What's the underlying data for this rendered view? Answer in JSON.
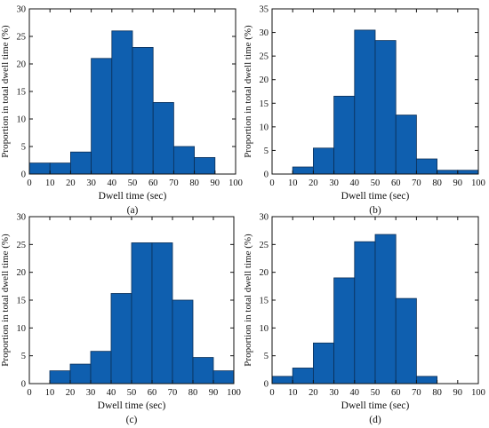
{
  "style": {
    "bar_color": "#0F5FAF",
    "edge_color": "#0b2f57",
    "axis_color": "#111111"
  },
  "chart_data": [
    {
      "type": "bar",
      "caption": "(a)",
      "xlabel": "Dwell time (sec)",
      "ylabel": "Proportion in total dwell time (%)",
      "xlim": [
        0,
        100
      ],
      "ylim": [
        0,
        30
      ],
      "xticks": [
        0,
        10,
        20,
        30,
        40,
        50,
        60,
        70,
        80,
        90,
        100
      ],
      "yticks": [
        0,
        5,
        10,
        15,
        20,
        25,
        30
      ],
      "bins": [
        [
          0,
          10
        ],
        [
          10,
          20
        ],
        [
          20,
          30
        ],
        [
          30,
          40
        ],
        [
          40,
          50
        ],
        [
          50,
          60
        ],
        [
          60,
          70
        ],
        [
          70,
          80
        ],
        [
          80,
          90
        ],
        [
          90,
          100
        ]
      ],
      "values": [
        2,
        2,
        4,
        21,
        26,
        23,
        13,
        5,
        3,
        0
      ]
    },
    {
      "type": "bar",
      "caption": "(b)",
      "xlabel": "Dwell time (sec)",
      "ylabel": "Proportion in total dwell time (%)",
      "xlim": [
        0,
        100
      ],
      "ylim": [
        0,
        35
      ],
      "xticks": [
        0,
        10,
        20,
        30,
        40,
        50,
        60,
        70,
        80,
        90,
        100
      ],
      "yticks": [
        0,
        5,
        10,
        15,
        20,
        25,
        30,
        35
      ],
      "bins": [
        [
          0,
          10
        ],
        [
          10,
          20
        ],
        [
          20,
          30
        ],
        [
          30,
          40
        ],
        [
          40,
          50
        ],
        [
          50,
          60
        ],
        [
          60,
          70
        ],
        [
          70,
          80
        ],
        [
          80,
          90
        ],
        [
          90,
          100
        ]
      ],
      "values": [
        0,
        1.5,
        5.5,
        16.5,
        30.5,
        28.3,
        12.5,
        3.2,
        0.8,
        0.8
      ]
    },
    {
      "type": "bar",
      "caption": "(c)",
      "xlabel": "Dwell time (sec)",
      "ylabel": "Proportion in total dwell time (%)",
      "xlim": [
        0,
        100
      ],
      "ylim": [
        0,
        30
      ],
      "xticks": [
        0,
        10,
        20,
        30,
        40,
        50,
        60,
        70,
        80,
        90,
        100
      ],
      "yticks": [
        0,
        5,
        10,
        15,
        20,
        25,
        30
      ],
      "bins": [
        [
          0,
          10
        ],
        [
          10,
          20
        ],
        [
          20,
          30
        ],
        [
          30,
          40
        ],
        [
          40,
          50
        ],
        [
          50,
          60
        ],
        [
          60,
          70
        ],
        [
          70,
          80
        ],
        [
          80,
          90
        ],
        [
          90,
          100
        ]
      ],
      "values": [
        0,
        2.3,
        3.5,
        5.8,
        16.2,
        25.3,
        25.3,
        15.0,
        4.7,
        2.3
      ]
    },
    {
      "type": "bar",
      "caption": "(d)",
      "xlabel": "Dwell time (sec)",
      "ylabel": "Proportion in total dwell time (%)",
      "xlim": [
        0,
        100
      ],
      "ylim": [
        0,
        30
      ],
      "xticks": [
        0,
        10,
        20,
        30,
        40,
        50,
        60,
        70,
        80,
        90,
        100
      ],
      "yticks": [
        0,
        5,
        10,
        15,
        20,
        25,
        30
      ],
      "bins": [
        [
          0,
          10
        ],
        [
          10,
          20
        ],
        [
          20,
          30
        ],
        [
          30,
          40
        ],
        [
          40,
          50
        ],
        [
          50,
          60
        ],
        [
          60,
          70
        ],
        [
          70,
          80
        ],
        [
          80,
          90
        ],
        [
          90,
          100
        ]
      ],
      "values": [
        1.3,
        2.8,
        7.3,
        19.0,
        25.5,
        26.8,
        15.3,
        1.3,
        0,
        0
      ]
    }
  ]
}
